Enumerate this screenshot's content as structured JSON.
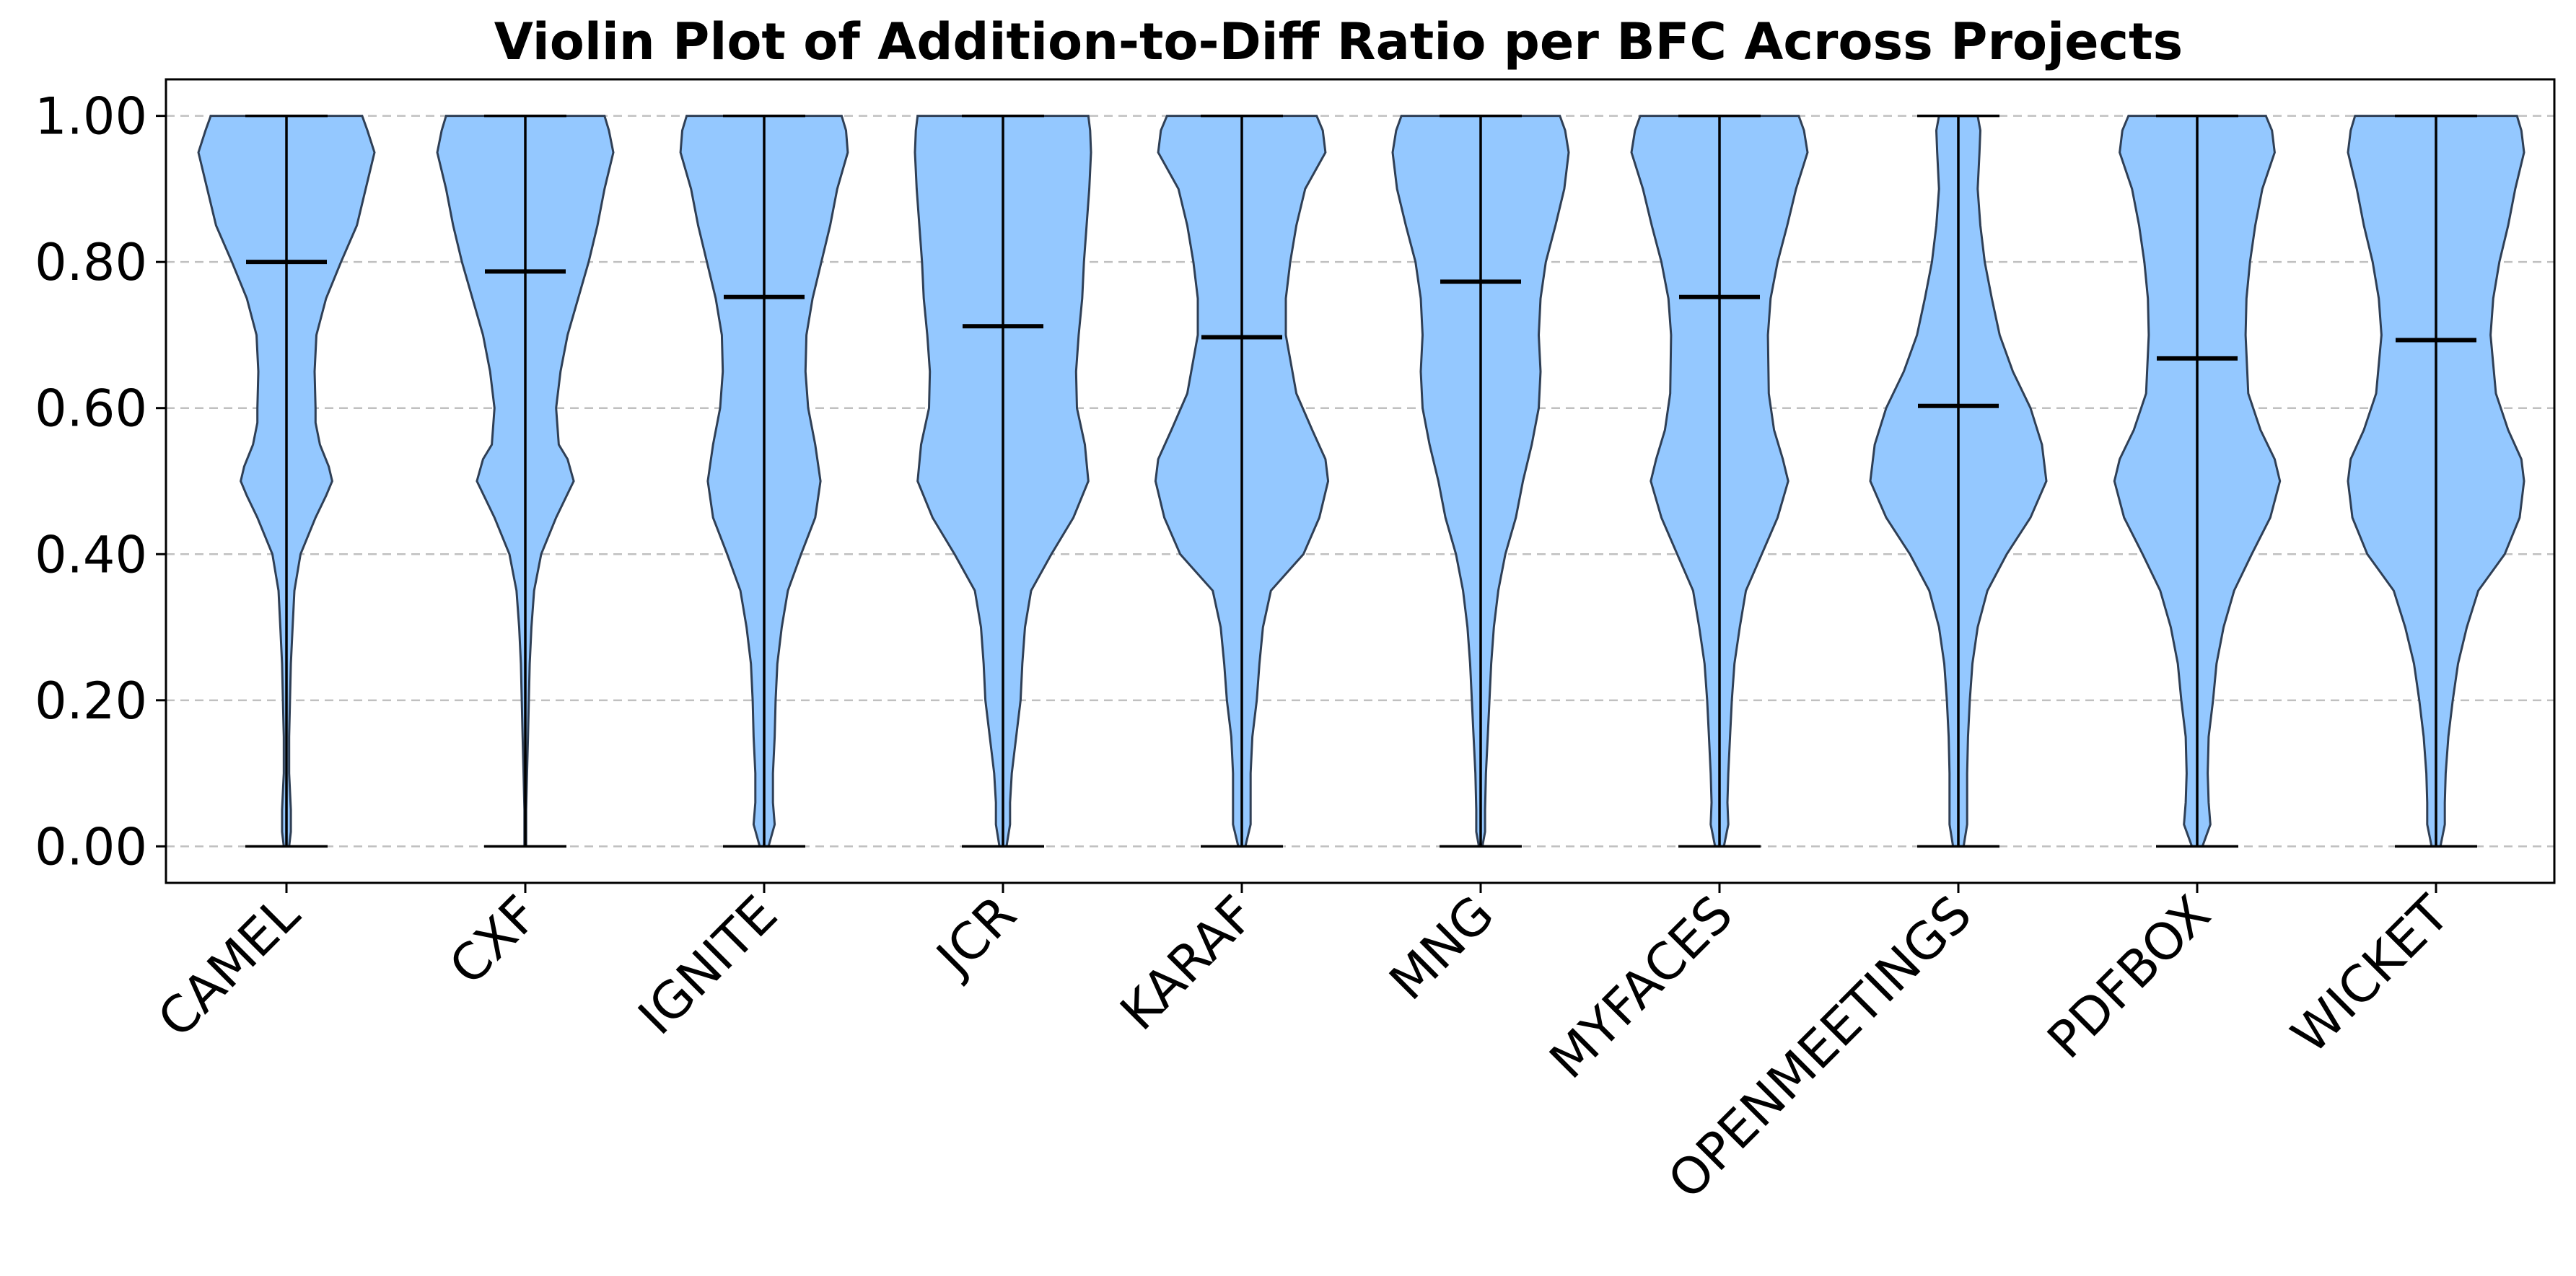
{
  "chart_data": {
    "type": "violin",
    "title": "Violin Plot of Addition-to-Diff Ratio per BFC Across Projects",
    "xlabel": "",
    "ylabel": "",
    "ylim": [
      -0.05,
      1.05
    ],
    "yticks": [
      0.0,
      0.2,
      0.4,
      0.6,
      0.8,
      1.0
    ],
    "ytick_labels": [
      "0.00",
      "0.20",
      "0.40",
      "0.60",
      "0.80",
      "1.00"
    ],
    "grid": "horizontal dashed",
    "legend": "none",
    "colors": {
      "fill": "#94c8ff",
      "edge": "#2f3f55",
      "line": "#000000",
      "grid": "#c0c0c0"
    },
    "categories": [
      "CAMEL",
      "CXF",
      "IGNITE",
      "JCR",
      "KARAF",
      "MNG",
      "MYFACES",
      "OPENMEETINGS",
      "PDFBOX",
      "WICKET"
    ],
    "series": [
      {
        "category": "CAMEL",
        "min": 0.0,
        "max": 1.0,
        "mean": 0.8,
        "density": [
          [
            0.0,
            0.03
          ],
          [
            0.02,
            0.05
          ],
          [
            0.05,
            0.05
          ],
          [
            0.1,
            0.03
          ],
          [
            0.15,
            0.03
          ],
          [
            0.2,
            0.04
          ],
          [
            0.25,
            0.05
          ],
          [
            0.3,
            0.07
          ],
          [
            0.35,
            0.09
          ],
          [
            0.4,
            0.16
          ],
          [
            0.45,
            0.33
          ],
          [
            0.48,
            0.45
          ],
          [
            0.5,
            0.52
          ],
          [
            0.52,
            0.48
          ],
          [
            0.55,
            0.38
          ],
          [
            0.58,
            0.33
          ],
          [
            0.6,
            0.33
          ],
          [
            0.65,
            0.32
          ],
          [
            0.7,
            0.34
          ],
          [
            0.75,
            0.45
          ],
          [
            0.8,
            0.62
          ],
          [
            0.85,
            0.8
          ],
          [
            0.9,
            0.9
          ],
          [
            0.95,
            1.0
          ],
          [
            0.98,
            0.92
          ],
          [
            1.0,
            0.86
          ]
        ]
      },
      {
        "category": "CXF",
        "min": 0.0,
        "max": 1.0,
        "mean": 0.787,
        "density": [
          [
            0.0,
            0.01
          ],
          [
            0.05,
            0.01
          ],
          [
            0.1,
            0.02
          ],
          [
            0.15,
            0.03
          ],
          [
            0.2,
            0.04
          ],
          [
            0.25,
            0.05
          ],
          [
            0.3,
            0.07
          ],
          [
            0.35,
            0.1
          ],
          [
            0.4,
            0.18
          ],
          [
            0.45,
            0.35
          ],
          [
            0.5,
            0.55
          ],
          [
            0.53,
            0.48
          ],
          [
            0.55,
            0.38
          ],
          [
            0.6,
            0.35
          ],
          [
            0.65,
            0.4
          ],
          [
            0.7,
            0.48
          ],
          [
            0.75,
            0.6
          ],
          [
            0.8,
            0.72
          ],
          [
            0.85,
            0.82
          ],
          [
            0.9,
            0.9
          ],
          [
            0.95,
            1.0
          ],
          [
            0.98,
            0.95
          ],
          [
            1.0,
            0.9
          ]
        ]
      },
      {
        "category": "IGNITE",
        "min": 0.0,
        "max": 1.0,
        "mean": 0.752,
        "density": [
          [
            0.0,
            0.05
          ],
          [
            0.03,
            0.12
          ],
          [
            0.06,
            0.1
          ],
          [
            0.1,
            0.1
          ],
          [
            0.15,
            0.12
          ],
          [
            0.2,
            0.13
          ],
          [
            0.25,
            0.15
          ],
          [
            0.3,
            0.2
          ],
          [
            0.35,
            0.27
          ],
          [
            0.4,
            0.42
          ],
          [
            0.45,
            0.58
          ],
          [
            0.5,
            0.64
          ],
          [
            0.55,
            0.58
          ],
          [
            0.6,
            0.5
          ],
          [
            0.65,
            0.47
          ],
          [
            0.7,
            0.48
          ],
          [
            0.75,
            0.55
          ],
          [
            0.8,
            0.65
          ],
          [
            0.85,
            0.75
          ],
          [
            0.9,
            0.83
          ],
          [
            0.95,
            0.95
          ],
          [
            0.98,
            0.93
          ],
          [
            1.0,
            0.88
          ]
        ]
      },
      {
        "category": "JCR",
        "min": 0.0,
        "max": 1.0,
        "mean": 0.712,
        "density": [
          [
            0.0,
            0.04
          ],
          [
            0.03,
            0.08
          ],
          [
            0.06,
            0.08
          ],
          [
            0.1,
            0.1
          ],
          [
            0.15,
            0.15
          ],
          [
            0.2,
            0.2
          ],
          [
            0.25,
            0.22
          ],
          [
            0.3,
            0.25
          ],
          [
            0.35,
            0.32
          ],
          [
            0.4,
            0.55
          ],
          [
            0.45,
            0.8
          ],
          [
            0.5,
            0.97
          ],
          [
            0.55,
            0.93
          ],
          [
            0.6,
            0.84
          ],
          [
            0.65,
            0.83
          ],
          [
            0.7,
            0.86
          ],
          [
            0.75,
            0.9
          ],
          [
            0.8,
            0.92
          ],
          [
            0.85,
            0.95
          ],
          [
            0.9,
            0.98
          ],
          [
            0.95,
            1.0
          ],
          [
            0.98,
            0.99
          ],
          [
            1.0,
            0.97
          ]
        ]
      },
      {
        "category": "KARAF",
        "min": 0.0,
        "max": 1.0,
        "mean": 0.697,
        "density": [
          [
            0.0,
            0.04
          ],
          [
            0.03,
            0.1
          ],
          [
            0.06,
            0.1
          ],
          [
            0.1,
            0.1
          ],
          [
            0.15,
            0.12
          ],
          [
            0.2,
            0.17
          ],
          [
            0.25,
            0.2
          ],
          [
            0.3,
            0.24
          ],
          [
            0.35,
            0.33
          ],
          [
            0.4,
            0.7
          ],
          [
            0.45,
            0.88
          ],
          [
            0.5,
            0.98
          ],
          [
            0.53,
            0.95
          ],
          [
            0.57,
            0.8
          ],
          [
            0.62,
            0.62
          ],
          [
            0.7,
            0.5
          ],
          [
            0.75,
            0.5
          ],
          [
            0.8,
            0.55
          ],
          [
            0.85,
            0.62
          ],
          [
            0.9,
            0.72
          ],
          [
            0.95,
            0.95
          ],
          [
            0.98,
            0.92
          ],
          [
            1.0,
            0.85
          ]
        ]
      },
      {
        "category": "MNG",
        "min": 0.0,
        "max": 1.0,
        "mean": 0.773,
        "density": [
          [
            0.0,
            0.02
          ],
          [
            0.02,
            0.05
          ],
          [
            0.05,
            0.05
          ],
          [
            0.1,
            0.06
          ],
          [
            0.15,
            0.08
          ],
          [
            0.2,
            0.1
          ],
          [
            0.25,
            0.12
          ],
          [
            0.3,
            0.15
          ],
          [
            0.35,
            0.2
          ],
          [
            0.4,
            0.28
          ],
          [
            0.45,
            0.4
          ],
          [
            0.5,
            0.48
          ],
          [
            0.55,
            0.58
          ],
          [
            0.6,
            0.66
          ],
          [
            0.65,
            0.68
          ],
          [
            0.7,
            0.66
          ],
          [
            0.75,
            0.68
          ],
          [
            0.8,
            0.74
          ],
          [
            0.85,
            0.85
          ],
          [
            0.9,
            0.95
          ],
          [
            0.95,
            1.0
          ],
          [
            0.98,
            0.96
          ],
          [
            1.0,
            0.9
          ]
        ]
      },
      {
        "category": "MYFACES",
        "min": 0.0,
        "max": 1.0,
        "mean": 0.752,
        "density": [
          [
            0.0,
            0.05
          ],
          [
            0.03,
            0.1
          ],
          [
            0.06,
            0.09
          ],
          [
            0.1,
            0.1
          ],
          [
            0.15,
            0.12
          ],
          [
            0.2,
            0.14
          ],
          [
            0.25,
            0.17
          ],
          [
            0.3,
            0.23
          ],
          [
            0.35,
            0.3
          ],
          [
            0.4,
            0.48
          ],
          [
            0.45,
            0.66
          ],
          [
            0.5,
            0.78
          ],
          [
            0.53,
            0.72
          ],
          [
            0.57,
            0.62
          ],
          [
            0.62,
            0.56
          ],
          [
            0.7,
            0.55
          ],
          [
            0.75,
            0.58
          ],
          [
            0.8,
            0.66
          ],
          [
            0.85,
            0.77
          ],
          [
            0.9,
            0.87
          ],
          [
            0.95,
            1.0
          ],
          [
            0.98,
            0.96
          ],
          [
            1.0,
            0.9
          ]
        ]
      },
      {
        "category": "OPENMEETINGS",
        "min": 0.0,
        "max": 1.0,
        "mean": 0.603,
        "density": [
          [
            0.0,
            0.06
          ],
          [
            0.03,
            0.1
          ],
          [
            0.06,
            0.1
          ],
          [
            0.1,
            0.1
          ],
          [
            0.15,
            0.11
          ],
          [
            0.2,
            0.13
          ],
          [
            0.25,
            0.16
          ],
          [
            0.3,
            0.22
          ],
          [
            0.35,
            0.33
          ],
          [
            0.4,
            0.55
          ],
          [
            0.45,
            0.82
          ],
          [
            0.5,
            1.0
          ],
          [
            0.55,
            0.95
          ],
          [
            0.6,
            0.82
          ],
          [
            0.65,
            0.62
          ],
          [
            0.7,
            0.47
          ],
          [
            0.75,
            0.38
          ],
          [
            0.8,
            0.3
          ],
          [
            0.85,
            0.25
          ],
          [
            0.9,
            0.22
          ],
          [
            0.95,
            0.24
          ],
          [
            0.98,
            0.25
          ],
          [
            1.0,
            0.22
          ]
        ]
      },
      {
        "category": "PDFBOX",
        "min": 0.0,
        "max": 1.0,
        "mean": 0.668,
        "density": [
          [
            0.0,
            0.06
          ],
          [
            0.03,
            0.15
          ],
          [
            0.06,
            0.13
          ],
          [
            0.1,
            0.12
          ],
          [
            0.15,
            0.13
          ],
          [
            0.2,
            0.18
          ],
          [
            0.25,
            0.22
          ],
          [
            0.3,
            0.3
          ],
          [
            0.35,
            0.42
          ],
          [
            0.4,
            0.62
          ],
          [
            0.45,
            0.83
          ],
          [
            0.5,
            0.94
          ],
          [
            0.53,
            0.88
          ],
          [
            0.57,
            0.72
          ],
          [
            0.62,
            0.58
          ],
          [
            0.7,
            0.55
          ],
          [
            0.75,
            0.56
          ],
          [
            0.8,
            0.6
          ],
          [
            0.85,
            0.66
          ],
          [
            0.9,
            0.74
          ],
          [
            0.95,
            0.88
          ],
          [
            0.98,
            0.85
          ],
          [
            1.0,
            0.78
          ]
        ]
      },
      {
        "category": "WICKET",
        "min": 0.0,
        "max": 1.0,
        "mean": 0.693,
        "density": [
          [
            0.0,
            0.05
          ],
          [
            0.03,
            0.1
          ],
          [
            0.06,
            0.1
          ],
          [
            0.1,
            0.11
          ],
          [
            0.15,
            0.14
          ],
          [
            0.2,
            0.19
          ],
          [
            0.25,
            0.25
          ],
          [
            0.3,
            0.35
          ],
          [
            0.35,
            0.48
          ],
          [
            0.4,
            0.78
          ],
          [
            0.45,
            0.95
          ],
          [
            0.5,
            1.0
          ],
          [
            0.53,
            0.97
          ],
          [
            0.57,
            0.82
          ],
          [
            0.62,
            0.68
          ],
          [
            0.7,
            0.62
          ],
          [
            0.75,
            0.65
          ],
          [
            0.8,
            0.72
          ],
          [
            0.85,
            0.82
          ],
          [
            0.9,
            0.9
          ],
          [
            0.95,
            1.0
          ],
          [
            0.98,
            0.97
          ],
          [
            1.0,
            0.92
          ]
        ]
      }
    ]
  }
}
